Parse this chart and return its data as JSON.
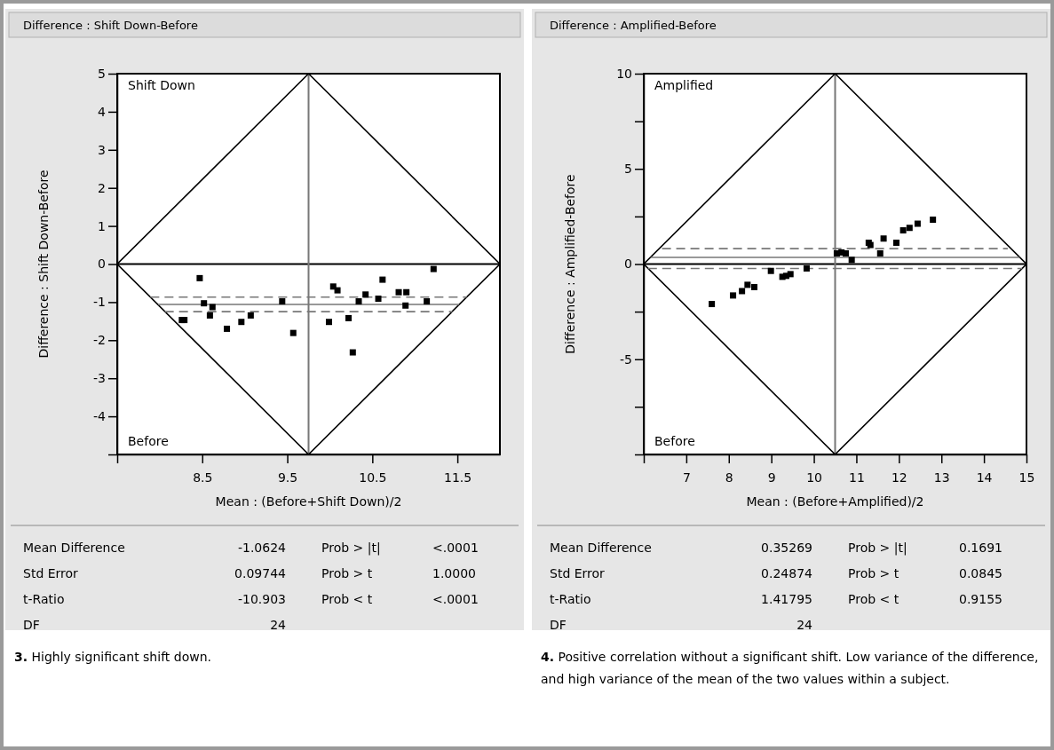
{
  "chart_data": [
    {
      "type": "scatter",
      "title": "Difference : Shift Down-Before",
      "xlabel": "Mean : (Before+Shift Down)/2",
      "ylabel": "Difference : Shift Down-Before",
      "subtitle": "3. Highly significant shift down.",
      "xlim": [
        7.5,
        12
      ],
      "ylim": [
        -5,
        5
      ],
      "xticks": [
        {
          "value": 7.5,
          "label": null
        },
        8.5,
        9.5,
        10.5,
        11.5
      ],
      "yticks": [
        5,
        4,
        3,
        2,
        1,
        0,
        -1,
        -2,
        -3,
        -4,
        {
          "value": -5,
          "label": null
        }
      ],
      "ref_lines": [
        {
          "axis": "y",
          "value": 0,
          "color": "#000000"
        },
        {
          "axis": "x",
          "value": 9.75,
          "color": "#777777"
        }
      ],
      "series": [
        {
          "type": "line",
          "color": "#000000",
          "x": [
            7.5,
            9.75,
            12
          ],
          "values": [
            0,
            5,
            0
          ]
        },
        {
          "type": "line",
          "color": "#000000",
          "x": [
            7.5,
            9.75,
            12
          ],
          "values": [
            0,
            -5,
            0
          ]
        },
        {
          "type": "line",
          "color": "#777777",
          "x": [
            7.98,
            11.52
          ],
          "values": [
            -1.06,
            -1.06
          ]
        },
        {
          "type": "line",
          "color": "#777777",
          "line_style": "dashed",
          "x": [
            7.89,
            11.61
          ],
          "values": [
            -0.87,
            -0.87
          ]
        },
        {
          "type": "line",
          "color": "#777777",
          "line_style": "dashed",
          "x": [
            8.06,
            11.44
          ],
          "values": [
            -1.25,
            -1.25
          ]
        },
        {
          "color": "#000000",
          "marker": "square",
          "x": [
            8.26,
            8.29,
            8.47,
            8.52,
            8.62,
            8.59,
            8.79,
            8.96,
            9.07,
            9.44,
            9.57,
            9.99,
            10.04,
            10.09,
            10.22,
            10.27,
            10.34,
            10.42,
            10.57,
            10.62,
            10.81,
            10.9,
            10.89,
            11.14,
            11.22
          ],
          "values": [
            -1.47,
            -1.47,
            -0.37,
            -1.03,
            -1.13,
            -1.35,
            -1.7,
            -1.52,
            -1.35,
            -0.98,
            -1.81,
            -1.52,
            -0.59,
            -0.69,
            -1.42,
            -2.32,
            -0.98,
            -0.8,
            -0.91,
            -0.41,
            -0.74,
            -0.74,
            -1.09,
            -0.98,
            -0.13
          ]
        }
      ],
      "annotations": [
        "Shift Down",
        "Before",
        "Mean Difference",
        "-1.0624",
        "Prob > |t|",
        "<.0001",
        "Std Error",
        "0.09744",
        "Prob > t",
        "1.0000",
        "t-Ratio",
        "-10.903",
        "Prob < t",
        "<.0001",
        "DF",
        "24"
      ]
    },
    {
      "type": "scatter",
      "title": "Difference : Amplified-Before",
      "xlabel": "Mean : (Before+Amplified)/2",
      "ylabel": "Difference : Amplified-Before",
      "subtitle": "4. Positive correlation without a significant shift. Low variance of the difference, and high variance of the mean of the two values within a subject.",
      "xlim": [
        6,
        15
      ],
      "ylim": [
        -10,
        10
      ],
      "xticks": [
        {
          "value": 6,
          "label": null
        },
        7,
        8,
        9,
        10,
        11,
        12,
        13,
        14,
        15
      ],
      "yticks": [
        10,
        {
          "value": 7.5,
          "label": null
        },
        5,
        {
          "value": 2.5,
          "label": null
        },
        0,
        {
          "value": -2.5,
          "label": null
        },
        -5,
        {
          "value": -7.5,
          "label": null
        },
        {
          "value": -10,
          "label": null
        }
      ],
      "ref_lines": [
        {
          "axis": "y",
          "value": 0,
          "color": "#000000"
        },
        {
          "axis": "x",
          "value": 10.5,
          "color": "#777777"
        }
      ],
      "series": [
        {
          "type": "line",
          "color": "#000000",
          "x": [
            6,
            10.5,
            15
          ],
          "values": [
            0,
            10,
            0
          ]
        },
        {
          "type": "line",
          "color": "#000000",
          "x": [
            6,
            10.5,
            15
          ],
          "values": [
            0,
            -10,
            0
          ]
        },
        {
          "type": "line",
          "color": "#777777",
          "x": [
            6.16,
            14.84
          ],
          "values": [
            0.35,
            0.35
          ]
        },
        {
          "type": "line",
          "color": "#777777",
          "line_style": "dashed",
          "x": [
            6.43,
            14.56
          ],
          "values": [
            0.81,
            0.81
          ]
        },
        {
          "type": "line",
          "color": "#777777",
          "line_style": "dashed",
          "x": [
            6.1,
            14.9
          ],
          "values": [
            -0.23,
            -0.23
          ]
        },
        {
          "color": "#000000",
          "marker": "square",
          "x": [
            7.6,
            8.1,
            8.31,
            8.44,
            8.6,
            8.99,
            9.26,
            9.35,
            9.45,
            9.83,
            10.54,
            10.65,
            10.75,
            10.89,
            11.29,
            11.33,
            11.56,
            11.64,
            11.94,
            12.1,
            12.25,
            12.44,
            12.8
          ],
          "values": [
            -2.1,
            -1.65,
            -1.42,
            -1.09,
            -1.21,
            -0.36,
            -0.67,
            -0.62,
            -0.53,
            -0.23,
            0.56,
            0.61,
            0.56,
            0.22,
            1.12,
            1.0,
            0.56,
            1.34,
            1.12,
            1.77,
            1.9,
            2.12,
            2.33
          ]
        }
      ],
      "annotations": [
        "Amplified",
        "Before",
        "Mean Difference",
        "0.35269",
        "Prob > |t|",
        "0.1691",
        "Std Error",
        "0.24874",
        "Prob > t",
        "0.0845",
        "t-Ratio",
        "1.41795",
        "Prob < t",
        "0.9155",
        "DF",
        "24"
      ]
    }
  ]
}
